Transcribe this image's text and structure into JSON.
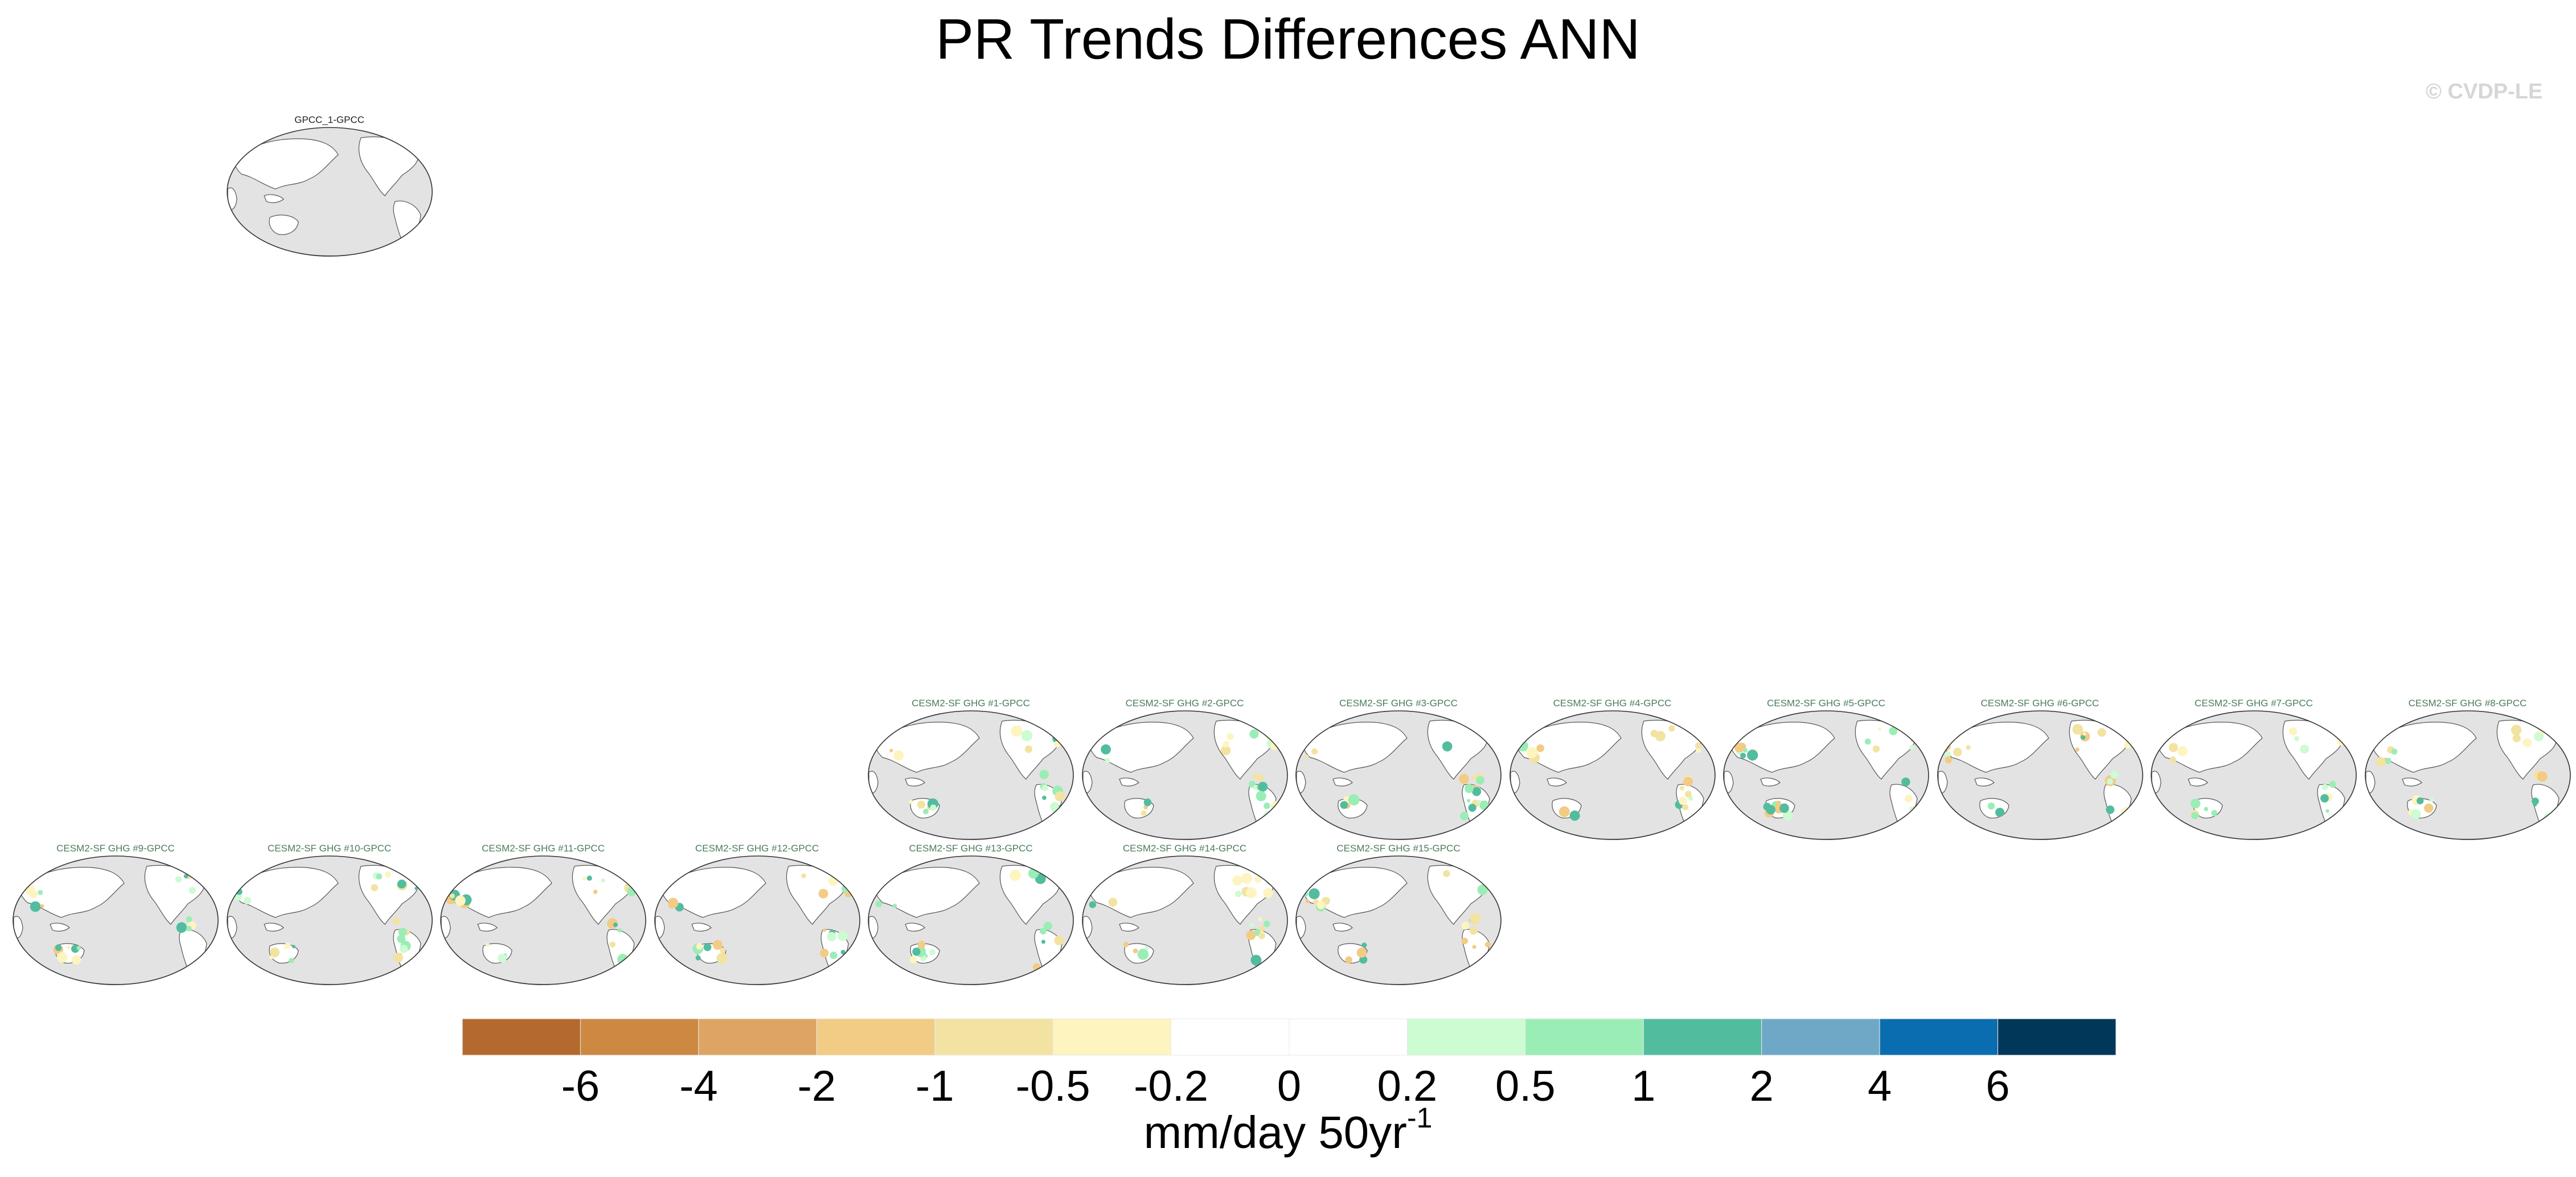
{
  "title": "PR Trends Differences ANN",
  "watermark": "© CVDP-LE",
  "units": {
    "base": "mm/day 50yr",
    "exponent": "-1"
  },
  "chart_data": {
    "type": "map-panels",
    "title": "PR Trends Differences ANN",
    "variable": "PR trend difference",
    "season": "ANN",
    "colorbar": {
      "tick_labels": [
        "-6",
        "-4",
        "-2",
        "-1",
        "-0.5",
        "-0.2",
        "0",
        "0.2",
        "0.5",
        "1",
        "2",
        "4",
        "6"
      ],
      "colors": [
        "#b46a2e",
        "#cd8842",
        "#dea464",
        "#f2cb84",
        "#f3e3a2",
        "#fdf4c0",
        "#ffffff",
        "#ffffff",
        "#cdfbd2",
        "#9bedb6",
        "#52bc9f",
        "#6fa8c7",
        "#0a6db0",
        "#013859"
      ],
      "units": "mm/day 50yr-1"
    },
    "panels": [
      {
        "label": "GPCC_1-GPCC",
        "row": 0,
        "col": 1,
        "kind": "obs"
      },
      {
        "label": "CESM2-SF GHG #1-GPCC",
        "row": 1,
        "col": 4
      },
      {
        "label": "CESM2-SF GHG #2-GPCC",
        "row": 1,
        "col": 5
      },
      {
        "label": "CESM2-SF GHG #3-GPCC",
        "row": 1,
        "col": 6
      },
      {
        "label": "CESM2-SF GHG #4-GPCC",
        "row": 1,
        "col": 7
      },
      {
        "label": "CESM2-SF GHG #5-GPCC",
        "row": 1,
        "col": 8
      },
      {
        "label": "CESM2-SF GHG #6-GPCC",
        "row": 1,
        "col": 9
      },
      {
        "label": "CESM2-SF GHG #7-GPCC",
        "row": 1,
        "col": 10
      },
      {
        "label": "CESM2-SF GHG #8-GPCC",
        "row": 1,
        "col": 11
      },
      {
        "label": "CESM2-SF GHG #9-GPCC",
        "row": 2,
        "col": 0
      },
      {
        "label": "CESM2-SF GHG #10-GPCC",
        "row": 2,
        "col": 1
      },
      {
        "label": "CESM2-SF GHG #11-GPCC",
        "row": 2,
        "col": 2
      },
      {
        "label": "CESM2-SF GHG #12-GPCC",
        "row": 2,
        "col": 3
      },
      {
        "label": "CESM2-SF GHG #13-GPCC",
        "row": 2,
        "col": 4
      },
      {
        "label": "CESM2-SF GHG #14-GPCC",
        "row": 2,
        "col": 5
      },
      {
        "label": "CESM2-SF GHG #15-GPCC",
        "row": 2,
        "col": 6
      }
    ]
  }
}
